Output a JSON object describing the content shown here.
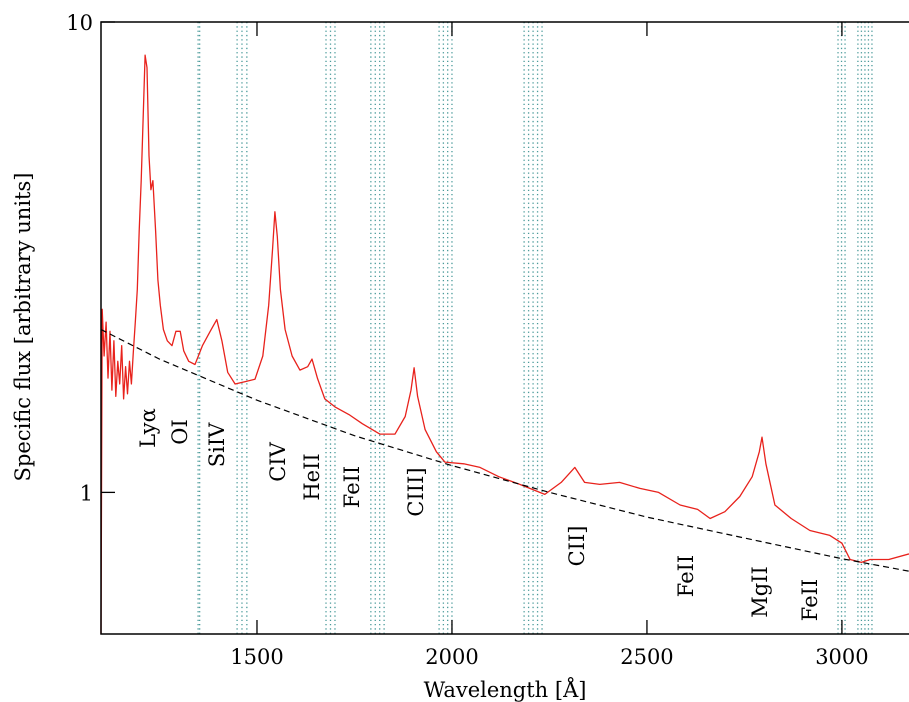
{
  "chart_data": {
    "type": "line",
    "xlabel": "Wavelength [Å]",
    "ylabel": "Specific flux [arbitrary units]",
    "xlim": [
      1100,
      3172
    ],
    "ylim": [
      0.5,
      10
    ],
    "log_y": true,
    "xticks": [
      1500,
      2000,
      2500,
      3000
    ],
    "yticks": [
      1,
      10
    ],
    "bands": [
      [
        1349,
        1353
      ],
      [
        1449,
        1474
      ],
      [
        1677,
        1700
      ],
      [
        1792,
        1826
      ],
      [
        1967,
        2000
      ],
      [
        2185,
        2231
      ],
      [
        2990,
        3008
      ],
      [
        3041,
        3077
      ]
    ],
    "band_color": "#4a9a9a",
    "series": [
      {
        "color": "#e8221c",
        "style": "solid",
        "x": [
          1100,
          1103,
          1108,
          1113,
          1118,
          1123,
          1128,
          1133,
          1138,
          1143,
          1148,
          1153,
          1158,
          1163,
          1168,
          1173,
          1178,
          1183,
          1188,
          1193,
          1198,
          1203,
          1208,
          1213,
          1218,
          1223,
          1228,
          1233,
          1240,
          1246,
          1252,
          1260,
          1270,
          1282,
          1292,
          1303,
          1312,
          1325,
          1341,
          1360,
          1380,
          1397,
          1410,
          1425,
          1444,
          1470,
          1495,
          1515,
          1530,
          1540,
          1546,
          1552,
          1560,
          1572,
          1590,
          1610,
          1630,
          1641,
          1655,
          1674,
          1700,
          1738,
          1770,
          1815,
          1854,
          1880,
          1895,
          1903,
          1912,
          1931,
          1960,
          1982,
          2030,
          2072,
          2120,
          2174,
          2238,
          2280,
          2315,
          2340,
          2379,
          2430,
          2482,
          2530,
          2585,
          2630,
          2662,
          2700,
          2738,
          2770,
          2788,
          2795,
          2805,
          2828,
          2870,
          2918,
          2969,
          3000,
          3021,
          3050,
          3072,
          3120,
          3172
        ],
        "values": [
          0.5,
          2.45,
          1.95,
          2.3,
          1.75,
          2.2,
          1.65,
          2.1,
          1.6,
          1.9,
          1.7,
          2.05,
          1.58,
          1.85,
          1.62,
          1.9,
          1.7,
          2.0,
          2.3,
          2.7,
          3.6,
          4.6,
          6.2,
          8.5,
          8.0,
          5.2,
          4.4,
          4.6,
          3.6,
          2.83,
          2.5,
          2.22,
          2.1,
          2.05,
          2.2,
          2.2,
          2.0,
          1.9,
          1.87,
          2.05,
          2.2,
          2.33,
          2.1,
          1.8,
          1.7,
          1.72,
          1.74,
          1.95,
          2.5,
          3.3,
          3.95,
          3.5,
          2.7,
          2.22,
          1.95,
          1.82,
          1.85,
          1.92,
          1.75,
          1.58,
          1.52,
          1.46,
          1.4,
          1.33,
          1.33,
          1.45,
          1.65,
          1.84,
          1.6,
          1.36,
          1.22,
          1.16,
          1.15,
          1.13,
          1.08,
          1.04,
          0.99,
          1.05,
          1.13,
          1.05,
          1.04,
          1.05,
          1.02,
          1.0,
          0.94,
          0.92,
          0.88,
          0.91,
          0.98,
          1.08,
          1.22,
          1.31,
          1.15,
          0.94,
          0.88,
          0.83,
          0.81,
          0.78,
          0.72,
          0.71,
          0.72,
          0.72,
          0.74
        ]
      },
      {
        "color": "#000000",
        "style": "dashed",
        "x": [
          1100,
          1250,
          1500,
          1750,
          2000,
          2250,
          2500,
          2750,
          3000,
          3172
        ],
        "values": [
          2.22,
          1.92,
          1.57,
          1.32,
          1.14,
          1.0,
          0.886,
          0.8,
          0.723,
          0.68
        ]
      }
    ],
    "annotations": [
      "Lyα",
      "OI",
      "SiIV",
      "CIV",
      "HeII",
      "FeII",
      "CIII]",
      "CII]",
      "FeII",
      "MgII",
      "FeII"
    ]
  }
}
